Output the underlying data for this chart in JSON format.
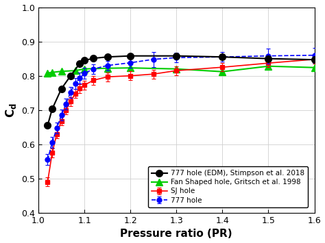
{
  "xlabel": "Pressure ratio (PR)",
  "ylabel": "C_d",
  "xlim": [
    1.0,
    1.6
  ],
  "ylim": [
    0.4,
    1.0
  ],
  "yticks": [
    0.4,
    0.5,
    0.6,
    0.7,
    0.8,
    0.9,
    1.0
  ],
  "xticks": [
    1.0,
    1.1,
    1.2,
    1.3,
    1.4,
    1.5,
    1.6
  ],
  "sj_x": [
    1.02,
    1.03,
    1.04,
    1.05,
    1.06,
    1.07,
    1.08,
    1.09,
    1.1,
    1.12,
    1.15,
    1.2,
    1.25,
    1.3,
    1.4,
    1.5,
    1.6
  ],
  "sj_y": [
    0.49,
    0.575,
    0.63,
    0.668,
    0.7,
    0.725,
    0.748,
    0.763,
    0.773,
    0.787,
    0.797,
    0.8,
    0.805,
    0.815,
    0.825,
    0.837,
    0.848
  ],
  "sj_yerr": [
    0.013,
    0.013,
    0.013,
    0.013,
    0.013,
    0.013,
    0.013,
    0.013,
    0.013,
    0.013,
    0.013,
    0.013,
    0.013,
    0.013,
    0.012,
    0.012,
    0.012
  ],
  "sj_color": "#ff0000",
  "sj_label": "SJ hole",
  "hole777_x": [
    1.02,
    1.03,
    1.04,
    1.05,
    1.06,
    1.07,
    1.08,
    1.09,
    1.1,
    1.12,
    1.15,
    1.2,
    1.25,
    1.3,
    1.4,
    1.5,
    1.6
  ],
  "hole777_y": [
    0.555,
    0.605,
    0.647,
    0.685,
    0.718,
    0.752,
    0.778,
    0.793,
    0.807,
    0.82,
    0.83,
    0.838,
    0.848,
    0.853,
    0.855,
    0.858,
    0.86
  ],
  "hole777_yerr": [
    0.016,
    0.016,
    0.016,
    0.016,
    0.016,
    0.016,
    0.016,
    0.016,
    0.016,
    0.014,
    0.014,
    0.014,
    0.022,
    0.014,
    0.014,
    0.022,
    0.022
  ],
  "hole777_color": "#0000ff",
  "hole777_label": "777 hole",
  "edm_x": [
    1.02,
    1.03,
    1.05,
    1.07,
    1.09,
    1.1,
    1.12,
    1.15,
    1.2,
    1.3,
    1.4,
    1.5,
    1.6
  ],
  "edm_y": [
    0.655,
    0.703,
    0.762,
    0.8,
    0.836,
    0.845,
    0.851,
    0.855,
    0.858,
    0.858,
    0.855,
    0.85,
    0.847
  ],
  "edm_color": "#000000",
  "edm_label": "777 hole (EDM), Stimpson et al. 2018",
  "fan_x": [
    1.02,
    1.03,
    1.05,
    1.08,
    1.1,
    1.15,
    1.2,
    1.3,
    1.4,
    1.5,
    1.6
  ],
  "fan_y": [
    0.808,
    0.81,
    0.813,
    0.815,
    0.82,
    0.822,
    0.823,
    0.82,
    0.812,
    0.828,
    0.824
  ],
  "fan_color": "#00cc00",
  "fan_label": "Fan Shaped hole, Gritsch et al. 1998",
  "background_color": "#ffffff"
}
